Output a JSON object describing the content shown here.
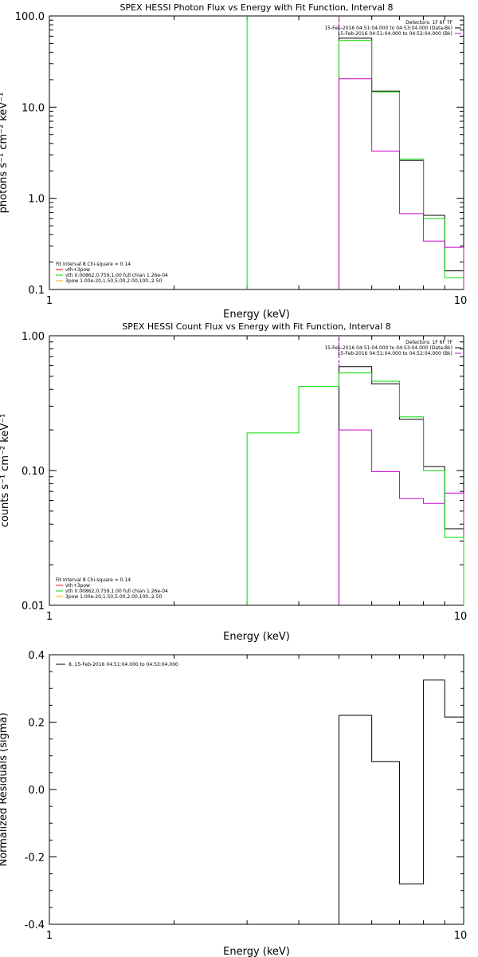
{
  "chart_data": [
    {
      "type": "line",
      "title": "SPEX HESSI Photon Flux vs Energy with Fit Function, Interval 8",
      "xlabel": "Energy (keV)",
      "ylabel": "photons s⁻¹ cm⁻² keV⁻¹",
      "x_scale": "log",
      "y_scale": "log",
      "xlim": [
        1,
        10
      ],
      "ylim": [
        0.1,
        100
      ],
      "x_ticks": [
        "1",
        "10"
      ],
      "y_ticks": [
        "0.1",
        "1.0",
        "10.0",
        "100.0"
      ],
      "grid": false,
      "legend_top": {
        "placement": "top-right",
        "entries": [
          {
            "text": "Detectors: 1F 6F 7F",
            "color": ""
          },
          {
            "text": "15-Feb-2016 04:51:04.000 to 04:53:04.000 (Data-Bk)",
            "color": "#000000"
          },
          {
            "text": "15-Feb-2016 04:51:04.000 to 04:52:04.000 (Bk)",
            "color": "#cc00cc"
          }
        ]
      },
      "legend_bottom": {
        "placement": "bottom-left",
        "header": "Fit Interval 8   Chi-square = 0.14",
        "entries": [
          {
            "text": "vth+3pow",
            "color": "#ff0000"
          },
          {
            "text": "vth 0.00862,0.759,1.00   full chian 1.26e-04",
            "color": "#00dd00"
          },
          {
            "text": "3pow 1.00e-20,1.50,5.00,2.00,100.,2.50",
            "color": "#ffaa00"
          }
        ]
      },
      "vlines": [
        {
          "x": 3,
          "color": "#00dd00",
          "style": "solid"
        },
        {
          "x": 5,
          "color": "#00dd00",
          "style": "dotted"
        },
        {
          "x": 5,
          "color": "#cc00cc",
          "style": "dashed"
        }
      ],
      "edges": [
        5,
        6,
        7,
        8,
        9,
        10
      ],
      "series": [
        {
          "color": "#000000",
          "values": [
            57,
            15,
            2.6,
            0.65,
            0.16
          ]
        },
        {
          "color": "#00dd00",
          "values": [
            54,
            14.7,
            2.7,
            0.6,
            0.135
          ]
        },
        {
          "color": "#cc00cc",
          "values": [
            20.5,
            3.3,
            0.68,
            0.34,
            0.29
          ]
        }
      ]
    },
    {
      "type": "line",
      "title": "SPEX HESSI Count Flux vs Energy with Fit Function, Interval 8",
      "xlabel": "Energy (keV)",
      "ylabel": "counts s⁻¹ cm⁻² keV⁻¹",
      "x_scale": "log",
      "y_scale": "log",
      "xlim": [
        1,
        10
      ],
      "ylim": [
        0.01,
        1
      ],
      "x_ticks": [
        "1",
        "10"
      ],
      "y_ticks": [
        "0.01",
        "0.10",
        "1.00"
      ],
      "grid": false,
      "legend_top": {
        "placement": "top-right",
        "entries": [
          {
            "text": "Detectors: 1F 6F 7F",
            "color": ""
          },
          {
            "text": "15-Feb-2016 04:51:04.000 to 04:53:04.000 (Data-Bk)",
            "color": "#000000"
          },
          {
            "text": "15-Feb-2016 04:51:04.000 to 04:52:04.000 (Bk)",
            "color": "#cc00cc"
          }
        ]
      },
      "legend_bottom": {
        "placement": "bottom-left",
        "header": "Fit Interval 8   Chi-square = 0.14",
        "entries": [
          {
            "text": "vth+3pow",
            "color": "#ff0000"
          },
          {
            "text": "vth 0.00862,0.759,1.00   full chian 1.26e-04",
            "color": "#00dd00"
          },
          {
            "text": "3pow 1.00e-20,1.50,5.00,2.00,100.,2.50",
            "color": "#ffaa00"
          }
        ]
      },
      "vlines": [
        {
          "x": 5,
          "color": "#000000",
          "style": "dotted"
        },
        {
          "x": 5,
          "color": "#cc00cc",
          "style": "dashed"
        }
      ],
      "edges_green": [
        3,
        4,
        5,
        6,
        7,
        8,
        9,
        10
      ],
      "edges": [
        5,
        6,
        7,
        8,
        9,
        10
      ],
      "series": [
        {
          "color": "#000000",
          "values": [
            0.59,
            0.44,
            0.24,
            0.107,
            0.037
          ]
        },
        {
          "color": "#cc00cc",
          "values": [
            0.2,
            0.098,
            0.062,
            0.057,
            0.068
          ]
        },
        {
          "color": "#00dd00",
          "edges_key": "edges_green",
          "values": [
            0.19,
            0.42,
            0.53,
            0.46,
            0.25,
            0.1,
            0.032
          ]
        }
      ]
    },
    {
      "type": "line",
      "title": "",
      "xlabel": "Energy (keV)",
      "ylabel": "Normalized Residuals (sigma)",
      "x_scale": "log",
      "y_scale": "linear",
      "xlim": [
        1,
        10
      ],
      "ylim": [
        -0.4,
        0.4
      ],
      "x_ticks": [
        "1",
        "10"
      ],
      "y_ticks": [
        "-0.4",
        "-0.2",
        "0.0",
        "0.2",
        "0.4"
      ],
      "y_tick_values": [
        -0.4,
        -0.2,
        0.0,
        0.2,
        0.4
      ],
      "grid": false,
      "legend_top": {
        "placement": "top-left",
        "entries": [
          {
            "text": "8, 15-Feb-2016 04:51:04.000 to 04:53:04.000",
            "color": "#000000"
          }
        ]
      },
      "edges": [
        5,
        6,
        7,
        8,
        9,
        10
      ],
      "series": [
        {
          "color": "#000000",
          "values": [
            0.22,
            0.083,
            -0.28,
            0.325,
            0.215
          ]
        }
      ]
    }
  ]
}
